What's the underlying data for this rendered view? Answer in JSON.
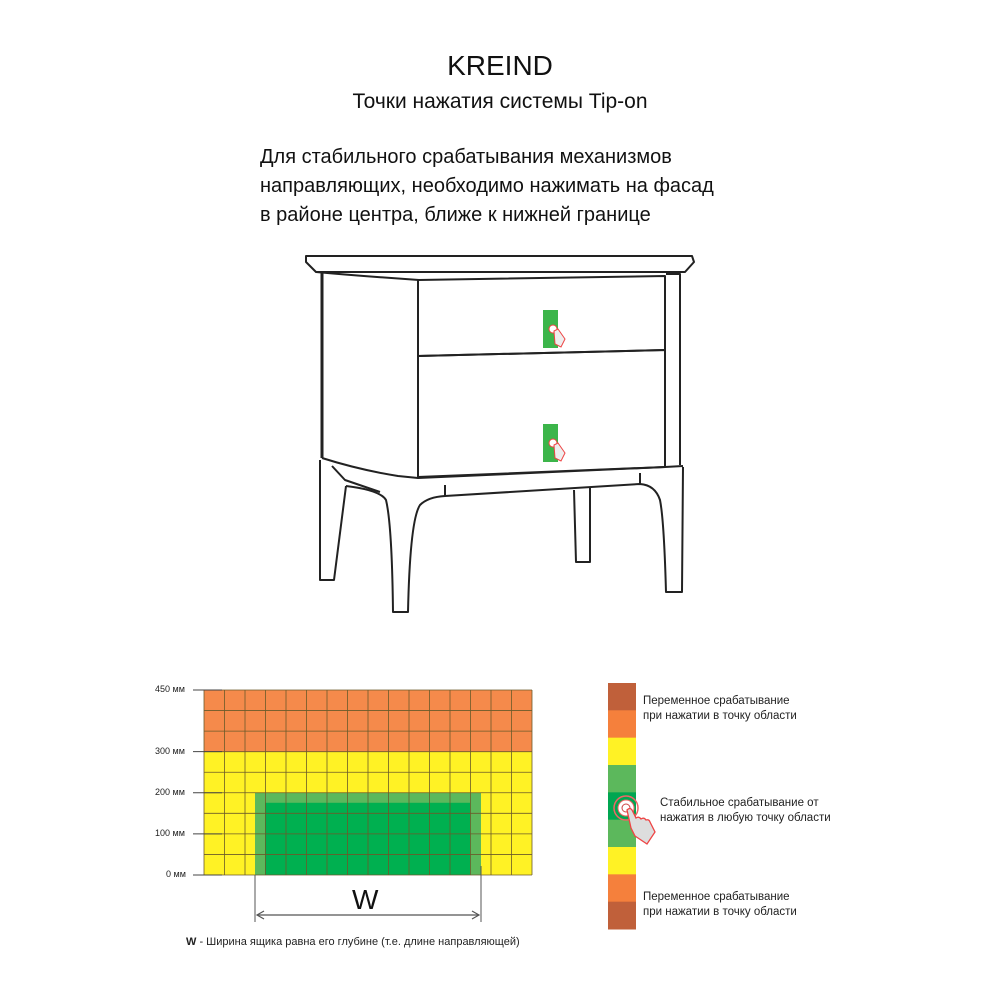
{
  "header": {
    "brand": "KREIND",
    "subtitle": "Точки нажатия системы Tip-on"
  },
  "instruction": {
    "lines": [
      "Для стабильного срабатывания механизмов",
      "направляющих, необходимо нажимать на фасад",
      "в районе центра, ближе к нижней границе"
    ]
  },
  "illustration": {
    "subject": "nightstand-with-two-drawers",
    "press_marker_color": "#3cb54a"
  },
  "zone_diagram": {
    "y_ticks": [
      "450 мм",
      "300 мм",
      "200 мм",
      "100 мм",
      "0 мм"
    ],
    "zones": [
      {
        "name": "variable",
        "from_mm": 300,
        "to_mm": 450,
        "color": "#f58a4b"
      },
      {
        "name": "transitional",
        "from_mm": 0,
        "to_mm": 300,
        "color": "#fff225"
      },
      {
        "name": "stable",
        "from_mm": 0,
        "to_mm": 200,
        "color": "#00b050",
        "border_color": "#5cb85c"
      }
    ],
    "width_label": "W",
    "note_bold": "W",
    "note": " - Ширина ящика равна его глубине (т.е. длине направляющей)"
  },
  "legend": {
    "strip_colors": [
      "#c0603a",
      "#f5803c",
      "#fff225",
      "#5cb85c",
      "#00a651",
      "#5cb85c",
      "#fff225",
      "#f5803c",
      "#c0603a"
    ],
    "top_text": [
      "Переменное срабатывание",
      "при нажатии в точку области"
    ],
    "middle_text": [
      "Стабильное срабатывание от",
      "нажатия в любую точку области"
    ],
    "bottom_text": [
      "Переменное срабатывание",
      "при нажатии в точку области"
    ],
    "icon": "hand-press-icon"
  }
}
